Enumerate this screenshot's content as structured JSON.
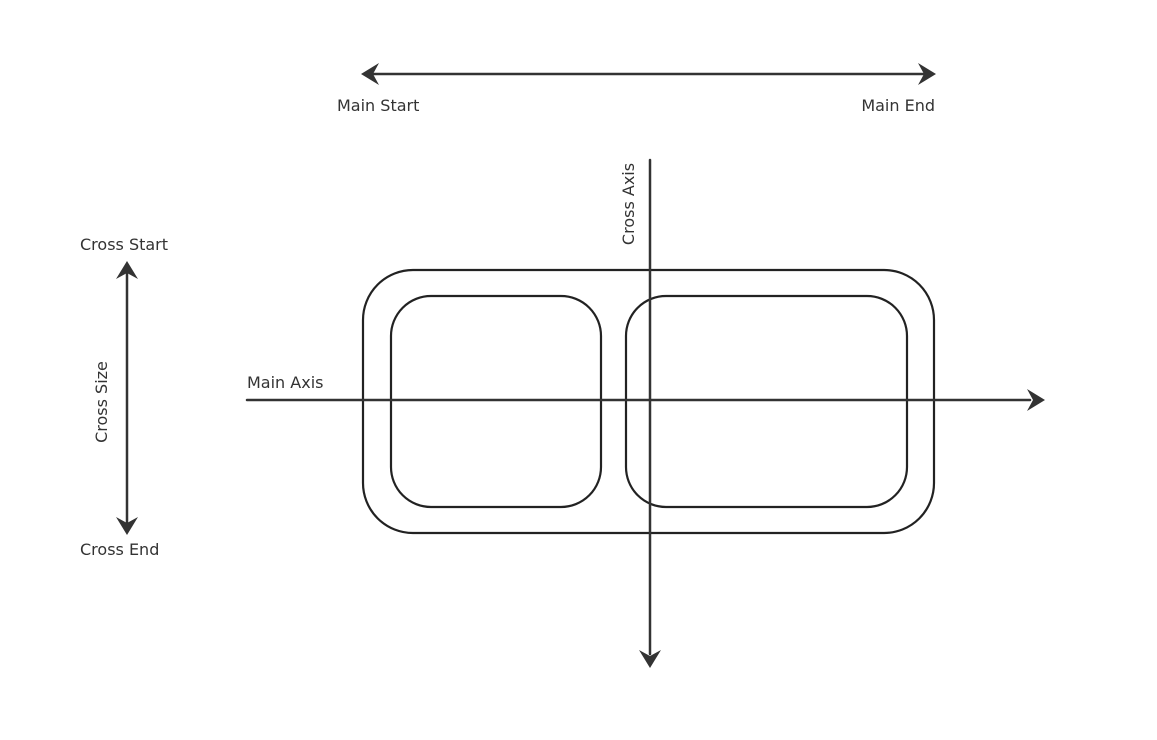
{
  "labels": {
    "main_start": "Main Start",
    "main_end": "Main End",
    "cross_axis": "Cross Axis",
    "cross_start": "Cross Start",
    "cross_size": "Cross Size",
    "cross_end": "Cross End",
    "main_axis": "Main Axis"
  },
  "colors": {
    "line": "#333333",
    "box": "#222222",
    "background": "#ffffff"
  }
}
